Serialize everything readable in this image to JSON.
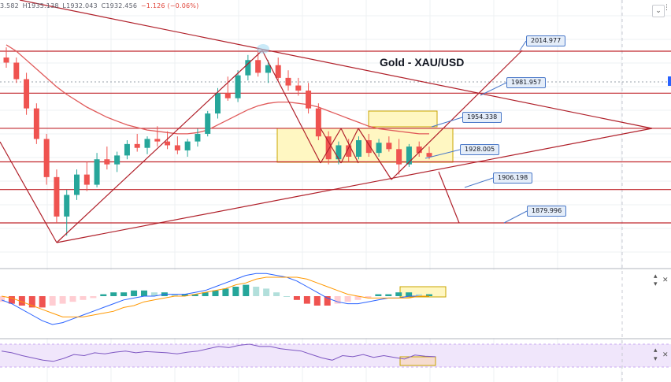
{
  "ohlc": {
    "open": "3.582",
    "high": "H1935.138",
    "low": "L1932.043",
    "close": "C1932.456",
    "change": "−1.126 (−0.06%)"
  },
  "header_controls": {
    "collapse_icon": "⌄",
    "menu_icon": "⋮"
  },
  "pane_controls": {
    "up": "▴",
    "down": "▾",
    "close": "✕"
  },
  "chart_data": {
    "type": "line",
    "title": "Gold - XAU/USD",
    "symbol": "XAU/USD",
    "ylim": [
      1860,
      2040
    ],
    "price_levels": [
      {
        "label": "2014.977",
        "value": 2014.977
      },
      {
        "label": "1981.957",
        "value": 1981.957
      },
      {
        "label": "1954.338",
        "value": 1954.338
      },
      {
        "label": "1928.005",
        "value": 1928.005
      },
      {
        "label": "1906.198",
        "value": 1906.198
      },
      {
        "label": "1879.996",
        "value": 1879.996
      }
    ],
    "candles": [
      {
        "o": 2010,
        "h": 2018,
        "l": 2002,
        "c": 2006
      },
      {
        "o": 2006,
        "h": 2010,
        "l": 1990,
        "c": 1993
      },
      {
        "o": 1993,
        "h": 1998,
        "l": 1965,
        "c": 1970
      },
      {
        "o": 1970,
        "h": 1974,
        "l": 1942,
        "c": 1946
      },
      {
        "o": 1946,
        "h": 1950,
        "l": 1910,
        "c": 1916
      },
      {
        "o": 1916,
        "h": 1922,
        "l": 1880,
        "c": 1885
      },
      {
        "o": 1885,
        "h": 1906,
        "l": 1870,
        "c": 1902
      },
      {
        "o": 1902,
        "h": 1922,
        "l": 1898,
        "c": 1918
      },
      {
        "o": 1918,
        "h": 1928,
        "l": 1905,
        "c": 1910
      },
      {
        "o": 1910,
        "h": 1935,
        "l": 1908,
        "c": 1930
      },
      {
        "o": 1930,
        "h": 1940,
        "l": 1922,
        "c": 1926
      },
      {
        "o": 1926,
        "h": 1936,
        "l": 1920,
        "c": 1933
      },
      {
        "o": 1933,
        "h": 1945,
        "l": 1930,
        "c": 1942
      },
      {
        "o": 1942,
        "h": 1950,
        "l": 1936,
        "c": 1939
      },
      {
        "o": 1939,
        "h": 1948,
        "l": 1934,
        "c": 1946
      },
      {
        "o": 1946,
        "h": 1956,
        "l": 1940,
        "c": 1944
      },
      {
        "o": 1944,
        "h": 1952,
        "l": 1938,
        "c": 1941
      },
      {
        "o": 1941,
        "h": 1948,
        "l": 1934,
        "c": 1937
      },
      {
        "o": 1937,
        "h": 1946,
        "l": 1932,
        "c": 1944
      },
      {
        "o": 1944,
        "h": 1954,
        "l": 1940,
        "c": 1950
      },
      {
        "o": 1950,
        "h": 1968,
        "l": 1948,
        "c": 1966
      },
      {
        "o": 1966,
        "h": 1986,
        "l": 1962,
        "c": 1982
      },
      {
        "o": 1982,
        "h": 1995,
        "l": 1976,
        "c": 1978
      },
      {
        "o": 1978,
        "h": 2000,
        "l": 1975,
        "c": 1996
      },
      {
        "o": 1996,
        "h": 2012,
        "l": 1992,
        "c": 2008
      },
      {
        "o": 2008,
        "h": 2018,
        "l": 1995,
        "c": 1998
      },
      {
        "o": 1998,
        "h": 2008,
        "l": 1990,
        "c": 2004
      },
      {
        "o": 2004,
        "h": 2010,
        "l": 1992,
        "c": 1994
      },
      {
        "o": 1994,
        "h": 2000,
        "l": 1984,
        "c": 1988
      },
      {
        "o": 1988,
        "h": 1994,
        "l": 1980,
        "c": 1984
      },
      {
        "o": 1984,
        "h": 1990,
        "l": 1966,
        "c": 1970
      },
      {
        "o": 1970,
        "h": 1974,
        "l": 1945,
        "c": 1948
      },
      {
        "o": 1948,
        "h": 1952,
        "l": 1926,
        "c": 1930
      },
      {
        "o": 1930,
        "h": 1944,
        "l": 1926,
        "c": 1941
      },
      {
        "o": 1941,
        "h": 1946,
        "l": 1928,
        "c": 1932
      },
      {
        "o": 1932,
        "h": 1948,
        "l": 1930,
        "c": 1945
      },
      {
        "o": 1945,
        "h": 1950,
        "l": 1932,
        "c": 1935
      },
      {
        "o": 1935,
        "h": 1946,
        "l": 1932,
        "c": 1943
      },
      {
        "o": 1943,
        "h": 1948,
        "l": 1936,
        "c": 1938
      },
      {
        "o": 1938,
        "h": 1946,
        "l": 1918,
        "c": 1926
      },
      {
        "o": 1926,
        "h": 1942,
        "l": 1924,
        "c": 1940
      },
      {
        "o": 1940,
        "h": 1944,
        "l": 1932,
        "c": 1935
      },
      {
        "o": 1935,
        "h": 1940,
        "l": 1930,
        "c": 1932
      }
    ],
    "moving_average": [
      2020,
      2015,
      2008,
      2001,
      1994,
      1987,
      1981,
      1976,
      1971,
      1967,
      1963,
      1960,
      1957,
      1955,
      1953,
      1952,
      1951,
      1950,
      1950,
      1951,
      1953,
      1957,
      1961,
      1965,
      1969,
      1972,
      1974,
      1975,
      1975,
      1974,
      1973,
      1971,
      1968,
      1965,
      1962,
      1959,
      1956,
      1954,
      1953,
      1952,
      1951,
      1950,
      1950
    ],
    "macd": {
      "histogram": [
        -3,
        -4,
        -5,
        -6,
        -6,
        -5,
        -4,
        -3,
        -2,
        -1,
        1,
        2,
        2,
        3,
        3,
        2,
        2,
        1,
        1,
        1,
        2,
        3,
        4,
        5,
        6,
        5,
        4,
        2,
        0,
        -2,
        -4,
        -5,
        -5,
        -4,
        -3,
        -2,
        -1,
        1,
        1,
        2,
        2,
        1,
        1
      ],
      "macd_line": [
        -2,
        -4,
        -7,
        -10,
        -13,
        -15,
        -14,
        -12,
        -10,
        -8,
        -6,
        -4,
        -2,
        -1,
        0,
        0,
        1,
        1,
        1,
        2,
        3,
        5,
        7,
        9,
        11,
        12,
        12,
        11,
        10,
        8,
        5,
        2,
        -1,
        -3,
        -4,
        -4,
        -3,
        -2,
        -1,
        -1,
        0,
        0,
        0
      ],
      "signal_line": [
        0,
        -1,
        -3,
        -5,
        -7,
        -9,
        -11,
        -11,
        -11,
        -10,
        -9,
        -8,
        -6,
        -5,
        -3,
        -2,
        -1,
        0,
        0,
        1,
        2,
        3,
        4,
        6,
        7,
        9,
        10,
        10,
        10,
        10,
        9,
        7,
        5,
        3,
        1,
        0,
        -1,
        -1,
        -1,
        -1,
        -1,
        0,
        0
      ]
    },
    "rsi": {
      "values": [
        58,
        55,
        50,
        46,
        42,
        40,
        45,
        52,
        50,
        55,
        53,
        56,
        58,
        55,
        57,
        56,
        55,
        53,
        56,
        58,
        62,
        66,
        64,
        68,
        70,
        66,
        66,
        62,
        60,
        58,
        52,
        46,
        42,
        50,
        48,
        52,
        47,
        50,
        47,
        44,
        51,
        49,
        48
      ]
    },
    "grid": true
  }
}
